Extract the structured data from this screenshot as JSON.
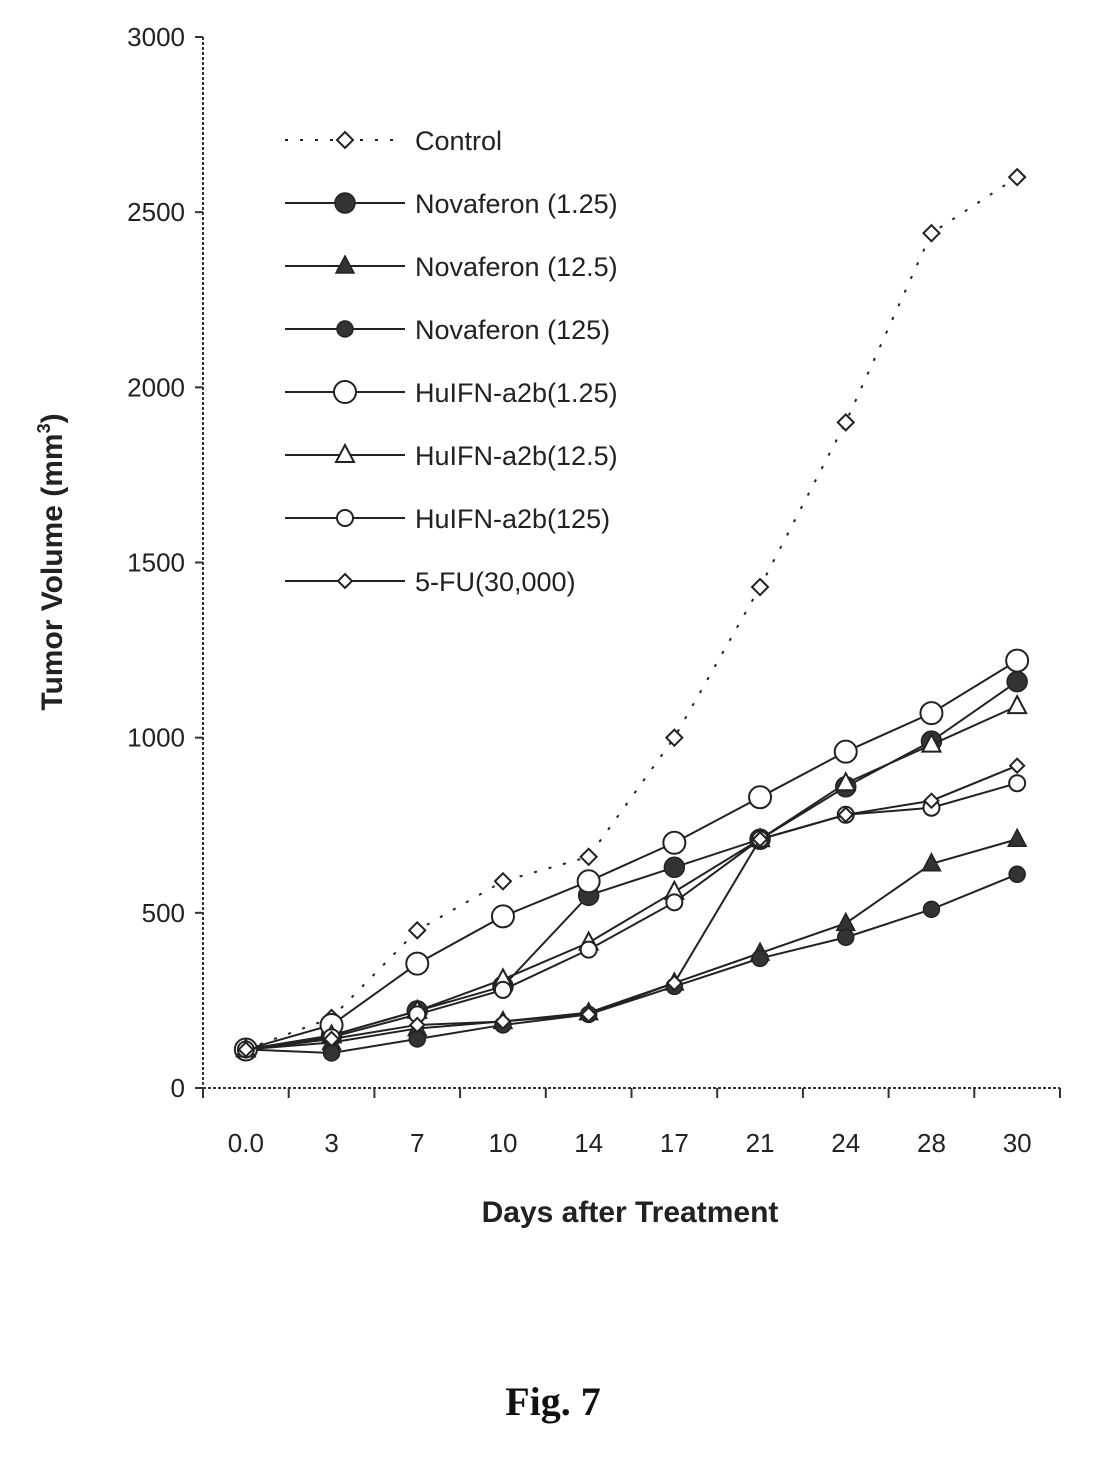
{
  "caption": "Fig. 7",
  "chart_data": {
    "type": "line",
    "title": "",
    "xlabel": "Days after Treatment",
    "ylabel": "Tumor Volume (mm",
    "ylabel_sup": "3",
    "ylabel_close": ")",
    "ylim": [
      0,
      3000
    ],
    "yticks": [
      "0",
      "500",
      "1000",
      "1500",
      "2000",
      "2500",
      "3000"
    ],
    "ytick_values": [
      0,
      500,
      1000,
      1500,
      2000,
      2500,
      3000
    ],
    "categories": [
      "0.0",
      "3",
      "7",
      "10",
      "14",
      "17",
      "21",
      "24",
      "28",
      "30"
    ],
    "grid": false,
    "legend_position": "top-left",
    "series": [
      {
        "name": "Control",
        "marker": "diamond-open",
        "dash": "dotted",
        "values": [
          110,
          200,
          450,
          590,
          660,
          1000,
          1430,
          1900,
          2440,
          2600
        ]
      },
      {
        "name": "Novaferon (1.25)",
        "marker": "circle-filled-large",
        "dash": "solid",
        "values": [
          110,
          150,
          220,
          290,
          550,
          630,
          710,
          860,
          990,
          1160
        ]
      },
      {
        "name": "Novaferon (12.5)",
        "marker": "triangle-filled",
        "dash": "solid",
        "values": [
          110,
          130,
          170,
          190,
          215,
          300,
          385,
          470,
          640,
          710
        ]
      },
      {
        "name": "Novaferon (125)",
        "marker": "circle-filled-small",
        "dash": "solid",
        "values": [
          110,
          100,
          140,
          180,
          210,
          290,
          370,
          430,
          510,
          610
        ]
      },
      {
        "name": "HuIFN-a2b(1.25)",
        "marker": "circle-open-large",
        "dash": "solid",
        "values": [
          110,
          180,
          355,
          490,
          590,
          700,
          830,
          960,
          1070,
          1220
        ]
      },
      {
        "name": "HuIFN-a2b(12.5)",
        "marker": "triangle-open",
        "dash": "solid",
        "values": [
          110,
          150,
          220,
          310,
          415,
          560,
          710,
          870,
          980,
          1090
        ]
      },
      {
        "name": "HuIFN-a2b(125)",
        "marker": "circle-open-small",
        "dash": "solid",
        "values": [
          110,
          145,
          210,
          280,
          395,
          530,
          710,
          780,
          800,
          870
        ]
      },
      {
        "name": "5-FU(30,000)",
        "marker": "diamond-open-small",
        "dash": "solid",
        "values": [
          110,
          140,
          180,
          190,
          210,
          300,
          710,
          780,
          820,
          920
        ]
      }
    ]
  }
}
